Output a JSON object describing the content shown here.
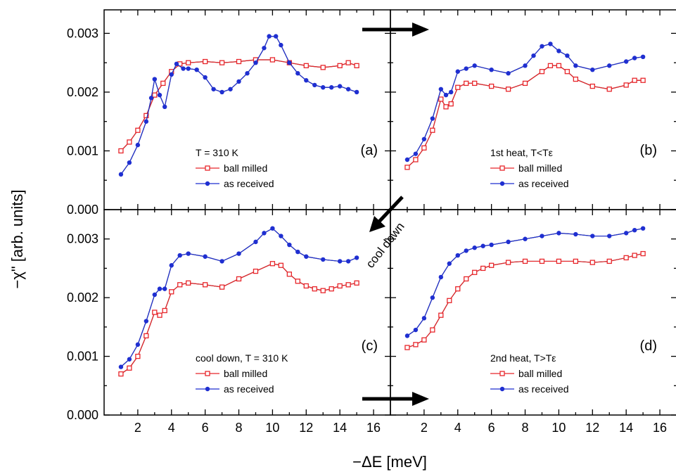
{
  "figure": {
    "xlabel": "−ΔE [meV]",
    "ylabel": "−χ\" [arb. units]",
    "cool_down_annotation": "cool down"
  },
  "chart_data": [
    {
      "type": "scatter",
      "panel": "(a)",
      "legend_title": "T = 310 K",
      "xlim": [
        0,
        17
      ],
      "ylim": [
        0,
        0.0034
      ],
      "xticks": [
        "2",
        "4",
        "6",
        "8",
        "10",
        "12",
        "14",
        "16"
      ],
      "yticks": [
        "0.000",
        "0.001",
        "0.002",
        "0.003"
      ],
      "ytick_values": [
        0,
        0.001,
        0.002,
        0.003
      ],
      "series": [
        {
          "name": "ball milled",
          "color": "#e8262b",
          "marker": "open-square",
          "x": [
            1.0,
            1.5,
            2.0,
            2.5,
            3.0,
            3.5,
            4.0,
            4.5,
            5.0,
            6.0,
            7.0,
            8.0,
            9.0,
            10.0,
            11.0,
            12.0,
            13.0,
            14.0,
            14.5,
            15.0
          ],
          "y": [
            0.001,
            0.00115,
            0.00135,
            0.0016,
            0.00195,
            0.00215,
            0.00235,
            0.00248,
            0.0025,
            0.00252,
            0.0025,
            0.00252,
            0.00255,
            0.00255,
            0.0025,
            0.00245,
            0.00242,
            0.00245,
            0.0025,
            0.00245
          ]
        },
        {
          "name": "as received",
          "color": "#1f2fd1",
          "marker": "filled-circle",
          "x": [
            1.0,
            1.5,
            2.0,
            2.5,
            2.8,
            3.0,
            3.3,
            3.6,
            4.0,
            4.3,
            4.7,
            5.0,
            5.5,
            6.0,
            6.5,
            7.0,
            7.5,
            8.0,
            8.5,
            9.0,
            9.5,
            9.8,
            10.2,
            10.5,
            11.0,
            11.5,
            12.0,
            12.5,
            13.0,
            13.5,
            14.0,
            14.5,
            15.0
          ],
          "y": [
            0.0006,
            0.0008,
            0.0011,
            0.0015,
            0.0019,
            0.00222,
            0.00195,
            0.00175,
            0.0023,
            0.00248,
            0.0024,
            0.0024,
            0.00238,
            0.00225,
            0.00205,
            0.002,
            0.00205,
            0.00218,
            0.00232,
            0.0025,
            0.00275,
            0.00295,
            0.00295,
            0.0028,
            0.0025,
            0.00232,
            0.0022,
            0.00212,
            0.00208,
            0.00208,
            0.0021,
            0.00205,
            0.002
          ]
        }
      ]
    },
    {
      "type": "scatter",
      "panel": "(b)",
      "legend_title": "1st heat, T<Tε",
      "xlim": [
        0,
        17
      ],
      "ylim": [
        0,
        0.0034
      ],
      "xticks": [
        "2",
        "4",
        "6",
        "8",
        "10",
        "12",
        "14",
        "16"
      ],
      "yticks": [],
      "series": [
        {
          "name": "ball milled",
          "color": "#e8262b",
          "marker": "open-square",
          "x": [
            1.0,
            1.5,
            2.0,
            2.5,
            3.0,
            3.3,
            3.6,
            4.0,
            4.5,
            5.0,
            6.0,
            7.0,
            8.0,
            9.0,
            9.5,
            10.0,
            10.5,
            11.0,
            12.0,
            13.0,
            14.0,
            14.5,
            15.0
          ],
          "y": [
            0.00072,
            0.00085,
            0.00105,
            0.00135,
            0.00188,
            0.00175,
            0.0018,
            0.00208,
            0.00215,
            0.00215,
            0.0021,
            0.00205,
            0.00215,
            0.00235,
            0.00245,
            0.00245,
            0.00235,
            0.00222,
            0.0021,
            0.00205,
            0.00212,
            0.0022,
            0.0022
          ]
        },
        {
          "name": "as received",
          "color": "#1f2fd1",
          "marker": "filled-circle",
          "x": [
            1.0,
            1.5,
            2.0,
            2.5,
            3.0,
            3.3,
            3.6,
            4.0,
            4.5,
            5.0,
            6.0,
            7.0,
            8.0,
            8.5,
            9.0,
            9.5,
            10.0,
            10.5,
            11.0,
            12.0,
            13.0,
            14.0,
            14.5,
            15.0
          ],
          "y": [
            0.00085,
            0.00095,
            0.0012,
            0.00155,
            0.00205,
            0.00195,
            0.002,
            0.00235,
            0.0024,
            0.00245,
            0.00238,
            0.00232,
            0.00245,
            0.00262,
            0.00278,
            0.00282,
            0.0027,
            0.00262,
            0.00245,
            0.00238,
            0.00245,
            0.00252,
            0.00258,
            0.0026
          ]
        }
      ]
    },
    {
      "type": "scatter",
      "panel": "(c)",
      "legend_title": "cool down, T = 310 K",
      "xlim": [
        0,
        17
      ],
      "ylim": [
        0,
        0.0035
      ],
      "xticks": [
        "2",
        "4",
        "6",
        "8",
        "10",
        "12",
        "14",
        "16"
      ],
      "yticks": [
        "0.000",
        "0.001",
        "0.002",
        "0.003"
      ],
      "ytick_values": [
        0,
        0.001,
        0.002,
        0.003
      ],
      "series": [
        {
          "name": "ball milled",
          "color": "#e8262b",
          "marker": "open-square",
          "x": [
            1.0,
            1.5,
            2.0,
            2.5,
            3.0,
            3.3,
            3.6,
            4.0,
            4.5,
            5.0,
            6.0,
            7.0,
            8.0,
            9.0,
            10.0,
            10.5,
            11.0,
            11.5,
            12.0,
            12.5,
            13.0,
            13.5,
            14.0,
            14.5,
            15.0
          ],
          "y": [
            0.0007,
            0.0008,
            0.001,
            0.00135,
            0.00175,
            0.0017,
            0.00178,
            0.0021,
            0.00222,
            0.00225,
            0.00222,
            0.00218,
            0.00232,
            0.00245,
            0.00258,
            0.00255,
            0.0024,
            0.00228,
            0.0022,
            0.00215,
            0.00212,
            0.00215,
            0.0022,
            0.00222,
            0.00225
          ]
        },
        {
          "name": "as received",
          "color": "#1f2fd1",
          "marker": "filled-circle",
          "x": [
            1.0,
            1.5,
            2.0,
            2.5,
            3.0,
            3.3,
            3.6,
            4.0,
            4.5,
            5.0,
            6.0,
            7.0,
            8.0,
            9.0,
            9.5,
            10.0,
            10.5,
            11.0,
            11.5,
            12.0,
            13.0,
            14.0,
            14.5,
            15.0
          ],
          "y": [
            0.00082,
            0.00095,
            0.0012,
            0.0016,
            0.00205,
            0.00215,
            0.00215,
            0.00255,
            0.00272,
            0.00275,
            0.0027,
            0.00262,
            0.00275,
            0.00295,
            0.0031,
            0.00318,
            0.00305,
            0.0029,
            0.00278,
            0.0027,
            0.00265,
            0.00262,
            0.00262,
            0.00268
          ]
        }
      ]
    },
    {
      "type": "scatter",
      "panel": "(d)",
      "legend_title": "2nd heat, T>Tε",
      "xlim": [
        0,
        17
      ],
      "ylim": [
        0,
        0.0035
      ],
      "xticks": [
        "2",
        "4",
        "6",
        "8",
        "10",
        "12",
        "14",
        "16"
      ],
      "yticks": [],
      "series": [
        {
          "name": "ball milled",
          "color": "#e8262b",
          "marker": "open-square",
          "x": [
            1.0,
            1.5,
            2.0,
            2.5,
            3.0,
            3.5,
            4.0,
            4.5,
            5.0,
            5.5,
            6.0,
            7.0,
            8.0,
            9.0,
            10.0,
            11.0,
            12.0,
            13.0,
            14.0,
            14.5,
            15.0
          ],
          "y": [
            0.00115,
            0.0012,
            0.00128,
            0.00145,
            0.0017,
            0.00195,
            0.00215,
            0.00232,
            0.00243,
            0.0025,
            0.00255,
            0.0026,
            0.00262,
            0.00262,
            0.00262,
            0.00262,
            0.0026,
            0.00262,
            0.00268,
            0.00272,
            0.00275
          ]
        },
        {
          "name": "as received",
          "color": "#1f2fd1",
          "marker": "filled-circle",
          "x": [
            1.0,
            1.5,
            2.0,
            2.5,
            3.0,
            3.5,
            4.0,
            4.5,
            5.0,
            5.5,
            6.0,
            7.0,
            8.0,
            9.0,
            10.0,
            11.0,
            12.0,
            13.0,
            14.0,
            14.5,
            15.0
          ],
          "y": [
            0.00135,
            0.00145,
            0.00165,
            0.002,
            0.00235,
            0.00258,
            0.00272,
            0.0028,
            0.00285,
            0.00288,
            0.0029,
            0.00295,
            0.003,
            0.00305,
            0.0031,
            0.00308,
            0.00305,
            0.00305,
            0.0031,
            0.00315,
            0.00318
          ]
        }
      ]
    }
  ]
}
